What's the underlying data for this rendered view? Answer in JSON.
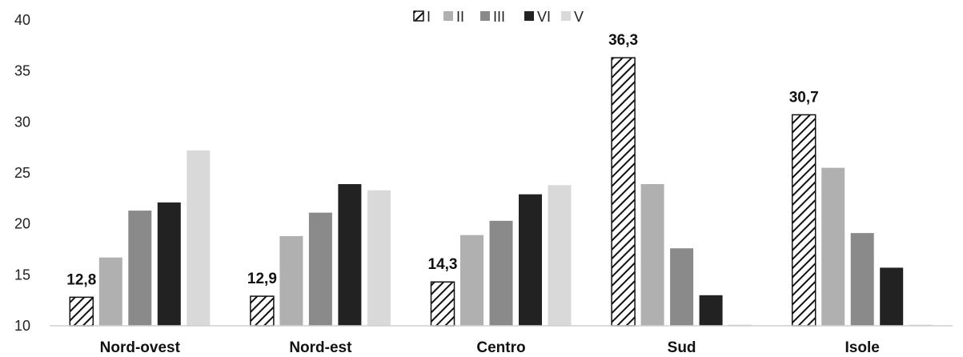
{
  "chart_data": {
    "type": "bar",
    "categories": [
      "Nord-ovest",
      "Nord-est",
      "Centro",
      "Sud",
      "Isole"
    ],
    "series": [
      {
        "name": "I",
        "color": "#ffffff",
        "pattern": "hatch",
        "values": [
          12.8,
          12.9,
          14.3,
          36.3,
          30.7
        ]
      },
      {
        "name": "II",
        "color": "#b0b0b0",
        "values": [
          16.7,
          18.8,
          18.9,
          23.9,
          25.5
        ]
      },
      {
        "name": "III",
        "color": "#8a8a8a",
        "values": [
          21.3,
          21.1,
          20.3,
          17.6,
          19.1
        ]
      },
      {
        "name": "VI",
        "color": "#222222",
        "values": [
          22.1,
          23.9,
          22.9,
          13.0,
          15.7
        ]
      },
      {
        "name": "V",
        "color": "#d9d9d9",
        "values": [
          27.2,
          23.3,
          23.8,
          9.9,
          9.9
        ]
      }
    ],
    "data_labels": {
      "series": "I",
      "texts": [
        "12,8",
        "12,9",
        "14,3",
        "36,3",
        "30,7"
      ]
    },
    "y_ticks": [
      "10",
      "15",
      "20",
      "25",
      "30",
      "35",
      "40"
    ],
    "ylim": [
      10,
      40
    ],
    "legend_position": "top-center",
    "grid": false
  }
}
